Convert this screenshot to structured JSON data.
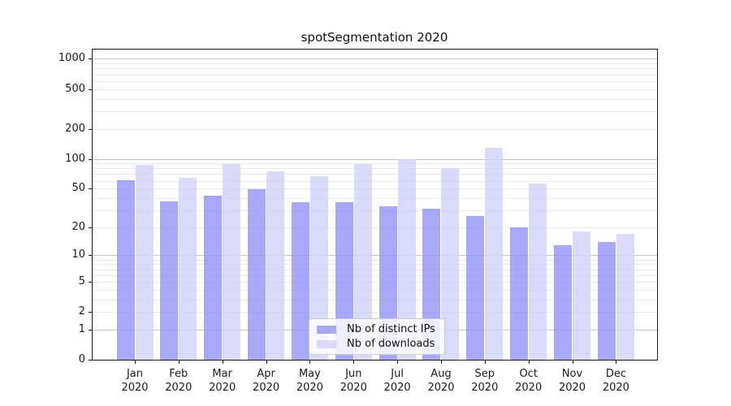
{
  "title": "spotSegmentation 2020",
  "chart_data": {
    "type": "bar",
    "categories": [
      "Jan",
      "Feb",
      "Mar",
      "Apr",
      "May",
      "Jun",
      "Jul",
      "Aug",
      "Sep",
      "Oct",
      "Nov",
      "Dec"
    ],
    "category_year": "2020",
    "series": [
      {
        "name": "Nb of distinct IPs",
        "color": "rgba(146,146,248,0.8)",
        "values": [
          61,
          37,
          42,
          49,
          36,
          36,
          33,
          31,
          26,
          20,
          13,
          14
        ]
      },
      {
        "name": "Nb of downloads",
        "color": "rgba(210,210,249,0.82)",
        "values": [
          87,
          64,
          88,
          74,
          67,
          88,
          100,
          81,
          129,
          56,
          18,
          17
        ]
      }
    ],
    "title": "spotSegmentation 2020",
    "xlabel": "",
    "ylabel": "",
    "yscale": "log1p",
    "yticks": [
      0,
      1,
      2,
      5,
      10,
      20,
      50,
      100,
      200,
      500,
      1000
    ],
    "ylim": [
      0,
      1250
    ],
    "grid": {
      "major_values": [
        1,
        10,
        100,
        1000
      ],
      "minor_values": [
        2,
        3,
        4,
        5,
        6,
        7,
        8,
        9,
        20,
        30,
        40,
        50,
        60,
        70,
        80,
        90,
        200,
        300,
        400,
        500,
        600,
        700,
        800,
        900
      ]
    },
    "legend_position": "lower center",
    "legend_entries": [
      "Nb of distinct IPs",
      "Nb of downloads"
    ]
  },
  "colors": {
    "bar_distinct_ips": "rgba(146,146,248,0.8)",
    "bar_downloads": "rgba(210,210,249,0.82)",
    "grid_major": "#c6c6c6",
    "grid_minor": "#eaeaea",
    "spine": "#1a1a1a",
    "background": "#ffffff"
  }
}
